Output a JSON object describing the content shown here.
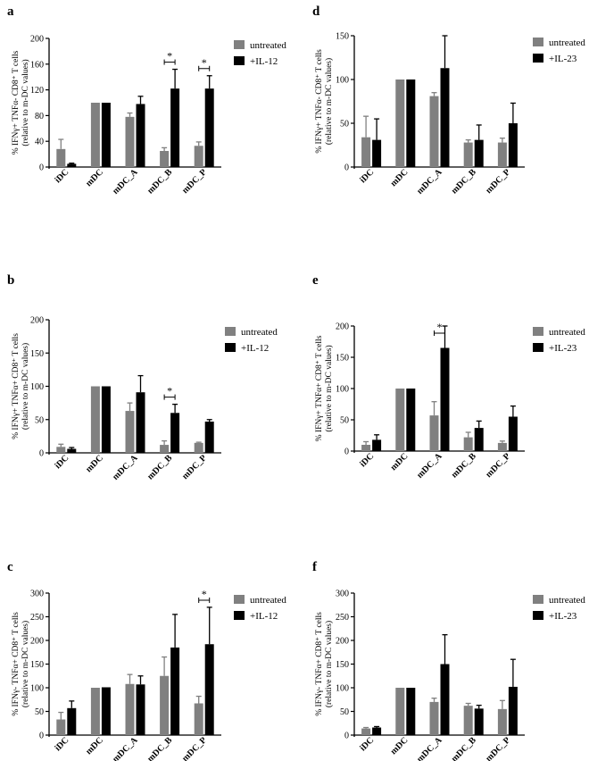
{
  "figure": {
    "chart_data": [
      {
        "panel": "a",
        "type": "bar",
        "ylabel": [
          "% IFNγ+ TNFα- CD8⁺ T cells",
          "(relative to m-DC values)"
        ],
        "categories": [
          "iDC",
          "mDC",
          "mDC_A",
          "mDC_B",
          "mDC_P"
        ],
        "ylim": [
          0,
          200
        ],
        "ticks": [
          "0",
          "40",
          "80",
          "120",
          "160",
          "200"
        ],
        "series": [
          {
            "name": "untreated",
            "color": "#808080",
            "values": [
              28,
              100,
              78,
              25,
              33
            ],
            "errors": [
              15,
              0,
              6,
              5,
              6
            ]
          },
          {
            "name": "+IL-12",
            "color": "#000000",
            "values": [
              5,
              100,
              98,
              122,
              122
            ],
            "errors": [
              1,
              0,
              12,
              30,
              20
            ]
          }
        ],
        "significance": [
          {
            "category": "mDC_B",
            "label": "*"
          },
          {
            "category": "mDC_P",
            "label": "*"
          }
        ]
      },
      {
        "panel": "d",
        "type": "bar",
        "ylabel": [
          "% IFNγ+ TNFα- CD8⁺ T cells",
          "(relative to m-DC values)"
        ],
        "categories": [
          "iDC",
          "mDC",
          "mDC_A",
          "mDC_B",
          "mDC_P"
        ],
        "ylim": [
          0,
          150
        ],
        "ticks": [
          "0",
          "50",
          "100",
          "150"
        ],
        "series": [
          {
            "name": "untreated",
            "color": "#808080",
            "values": [
              34,
              100,
              81,
              28,
              28
            ],
            "errors": [
              24,
              0,
              4,
              3,
              5
            ]
          },
          {
            "name": "+IL-23",
            "color": "#000000",
            "values": [
              31,
              100,
              113,
              31,
              50
            ],
            "errors": [
              24,
              0,
              37,
              17,
              23
            ]
          }
        ],
        "significance": []
      },
      {
        "panel": "b",
        "type": "bar",
        "ylabel": [
          "% IFNγ+ TNFα+ CD8⁺ T cells",
          "(relative to m-DC values)"
        ],
        "categories": [
          "iDC",
          "mDC",
          "mDC_A",
          "mDC_B",
          "mDC_P"
        ],
        "ylim": [
          0,
          200
        ],
        "ticks": [
          "0",
          "50",
          "100",
          "150",
          "200"
        ],
        "series": [
          {
            "name": "untreated",
            "color": "#808080",
            "values": [
              9,
              100,
              63,
              12,
              15
            ],
            "errors": [
              4,
              0,
              12,
              6,
              1
            ]
          },
          {
            "name": "+IL-12",
            "color": "#000000",
            "values": [
              6,
              100,
              91,
              60,
              47
            ],
            "errors": [
              2,
              0,
              25,
              13,
              3
            ]
          }
        ],
        "significance": [
          {
            "category": "mDC_B",
            "label": "*"
          }
        ]
      },
      {
        "panel": "e",
        "type": "bar",
        "ylabel": [
          "% IFNγ+ TNFα+ CD8⁺ T cells",
          "(relative to m-DC values)"
        ],
        "categories": [
          "iDC",
          "mDC",
          "mDC_A",
          "mDC_B",
          "mDC_P"
        ],
        "ylim": [
          0,
          200
        ],
        "ticks": [
          "0",
          "50",
          "100",
          "150",
          "200"
        ],
        "series": [
          {
            "name": "untreated",
            "color": "#808080",
            "values": [
              10,
              100,
              57,
              22,
              13
            ],
            "errors": [
              5,
              0,
              22,
              8,
              3
            ]
          },
          {
            "name": "+IL-23",
            "color": "#000000",
            "values": [
              18,
              100,
              165,
              37,
              55
            ],
            "errors": [
              8,
              0,
              35,
              11,
              17
            ]
          }
        ],
        "significance": [
          {
            "category": "mDC_A",
            "label": "*"
          }
        ]
      },
      {
        "panel": "c",
        "type": "bar",
        "ylabel": [
          "% IFNγ- TNFα+ CD8⁺ T cells",
          "(relative to m-DC values)"
        ],
        "categories": [
          "iDC",
          "mDC",
          "mDC_A",
          "mDC_B",
          "mDC_P"
        ],
        "ylim": [
          0,
          300
        ],
        "ticks": [
          "0",
          "50",
          "100",
          "150",
          "200",
          "250",
          "300"
        ],
        "series": [
          {
            "name": "untreated",
            "color": "#808080",
            "values": [
              33,
              100,
              108,
              125,
              67
            ],
            "errors": [
              15,
              0,
              20,
              40,
              15
            ]
          },
          {
            "name": "+IL-12",
            "color": "#000000",
            "values": [
              57,
              101,
              107,
              185,
              192
            ],
            "errors": [
              15,
              0,
              18,
              70,
              78
            ]
          }
        ],
        "significance": [
          {
            "category": "mDC_P",
            "label": "*"
          }
        ]
      },
      {
        "panel": "f",
        "type": "bar",
        "ylabel": [
          "% IFNγ- TNFα+ CD8⁺ T cells",
          "(relative to m-DC values)"
        ],
        "categories": [
          "iDC",
          "mDC",
          "mDC_A",
          "mDC_B",
          "mDC_P"
        ],
        "ylim": [
          0,
          300
        ],
        "ticks": [
          "0",
          "50",
          "100",
          "150",
          "200",
          "250",
          "300"
        ],
        "series": [
          {
            "name": "untreated",
            "color": "#808080",
            "values": [
              14,
              100,
              70,
              62,
              55
            ],
            "errors": [
              2,
              0,
              8,
              5,
              18
            ]
          },
          {
            "name": "+IL-23",
            "color": "#000000",
            "values": [
              16,
              100,
              150,
              56,
              102
            ],
            "errors": [
              2,
              0,
              62,
              7,
              58
            ]
          }
        ],
        "significance": []
      }
    ]
  }
}
